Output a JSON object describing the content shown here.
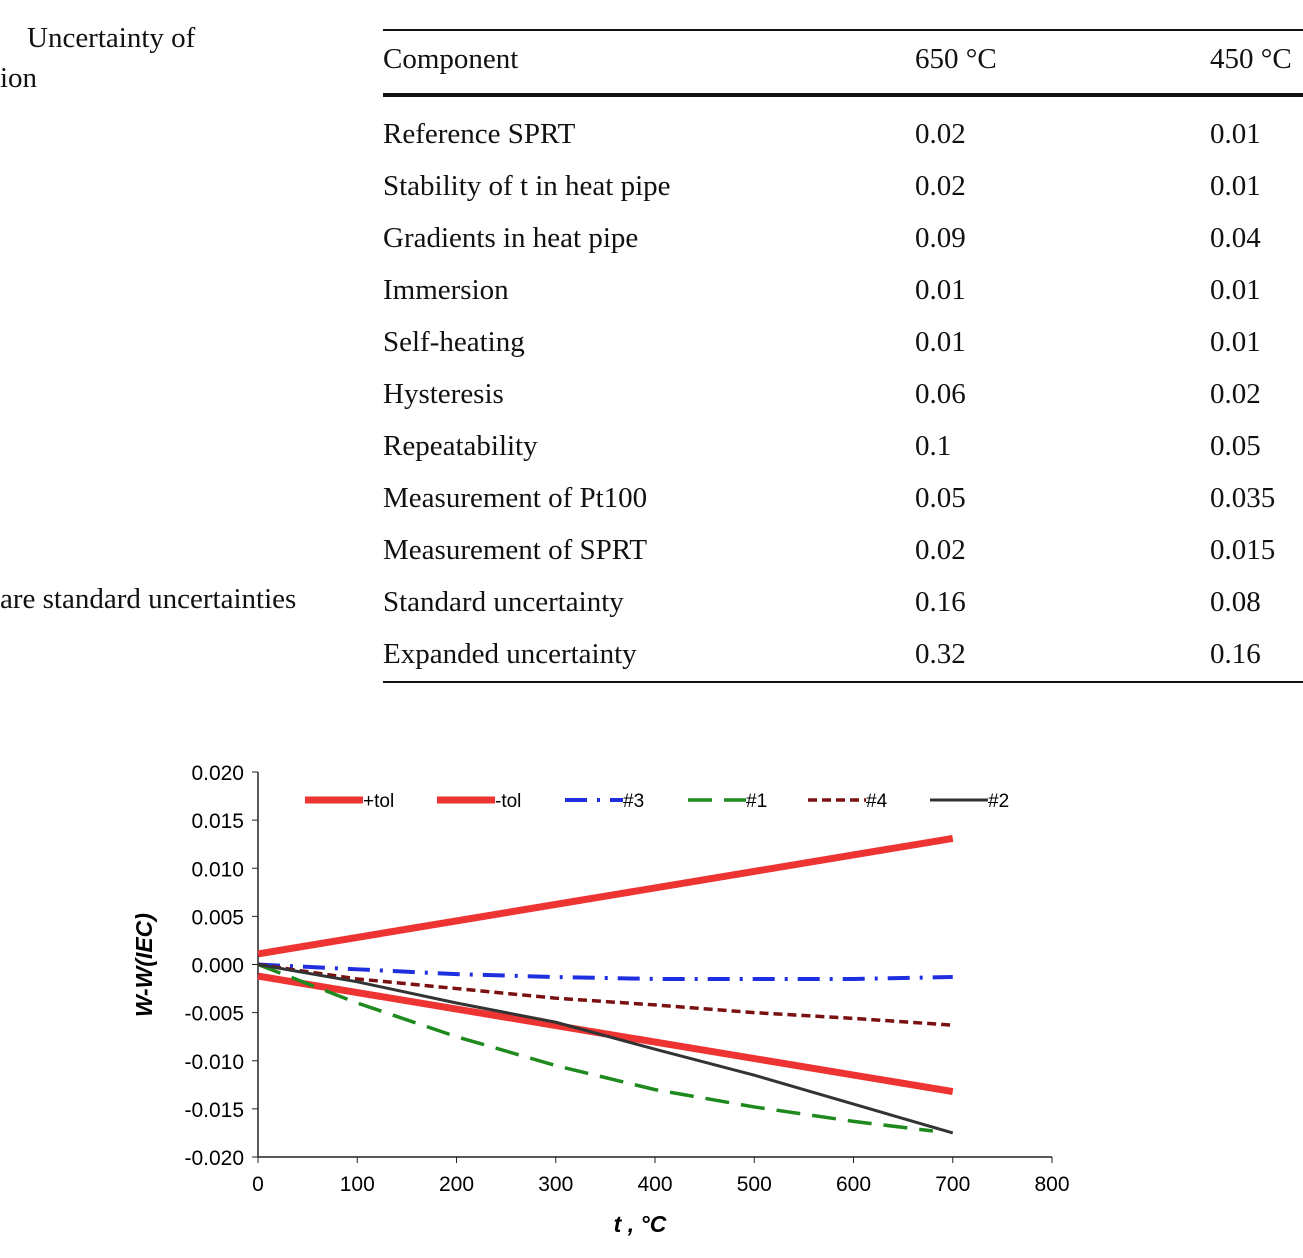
{
  "caption": {
    "line1": "Uncertainty of",
    "line2": "ion",
    "note": "are standard uncertainties"
  },
  "table": {
    "headers": [
      "Component",
      "650 °C",
      "450 °C"
    ],
    "rows": [
      [
        "Reference SPRT",
        "0.02",
        "0.01"
      ],
      [
        "Stability of t in heat pipe",
        "0.02",
        "0.01"
      ],
      [
        "Gradients in heat pipe",
        "0.09",
        "0.04"
      ],
      [
        "Immersion",
        "0.01",
        "0.01"
      ],
      [
        "Self-heating",
        "0.01",
        "0.01"
      ],
      [
        "Hysteresis",
        "0.06",
        "0.02"
      ],
      [
        "Repeatability",
        "0.1",
        "0.05"
      ],
      [
        "Measurement of Pt100",
        "0.05",
        "0.035"
      ],
      [
        "Measurement of SPRT",
        "0.02",
        "0.015"
      ],
      [
        "Standard uncertainty",
        "0.16",
        "0.08"
      ],
      [
        "Expanded uncertainty",
        "0.32",
        "0.16"
      ]
    ]
  },
  "chart_data": {
    "type": "line",
    "xlabel": "t , °C",
    "ylabel": "W-W(IEC)",
    "xlim": [
      0,
      800
    ],
    "ylim": [
      -0.02,
      0.02
    ],
    "xticks": [
      "0",
      "100",
      "200",
      "300",
      "400",
      "500",
      "600",
      "700",
      "800"
    ],
    "yticks": [
      "0.020",
      "0.015",
      "0.010",
      "0.005",
      "0.000",
      "-0.005",
      "-0.010",
      "-0.015",
      "-0.020"
    ],
    "legend_position": "top",
    "series": [
      {
        "name": "+tol",
        "color": "#ee3333",
        "style": "thick",
        "x": [
          0,
          700
        ],
        "y": [
          0.0011,
          0.0131
        ]
      },
      {
        "name": "-tol",
        "color": "#ee3333",
        "style": "thick",
        "x": [
          0,
          700
        ],
        "y": [
          -0.0012,
          -0.0132
        ]
      },
      {
        "name": "#3",
        "color": "#1f2fe0",
        "style": "dashdot",
        "x": [
          0,
          100,
          200,
          300,
          400,
          500,
          600,
          700
        ],
        "y": [
          0,
          -0.0005,
          -0.001,
          -0.0013,
          -0.0015,
          -0.0015,
          -0.0015,
          -0.0013
        ]
      },
      {
        "name": "#1",
        "color": "#1e8a1e",
        "style": "dash",
        "x": [
          0,
          50,
          100,
          200,
          300,
          400,
          500,
          600,
          680
        ],
        "y": [
          0,
          -0.002,
          -0.004,
          -0.0075,
          -0.0105,
          -0.013,
          -0.0148,
          -0.0163,
          -0.0173
        ]
      },
      {
        "name": "#4",
        "color": "#7a1010",
        "style": "shortdash",
        "x": [
          0,
          100,
          200,
          300,
          400,
          500,
          600,
          700
        ],
        "y": [
          0,
          -0.0015,
          -0.0025,
          -0.0035,
          -0.0042,
          -0.005,
          -0.0056,
          -0.0063
        ]
      },
      {
        "name": "#2",
        "color": "#333333",
        "style": "solid",
        "x": [
          0,
          100,
          200,
          300,
          400,
          500,
          600,
          700
        ],
        "y": [
          0,
          -0.0018,
          -0.004,
          -0.006,
          -0.0088,
          -0.0115,
          -0.0145,
          -0.0175
        ]
      }
    ]
  }
}
